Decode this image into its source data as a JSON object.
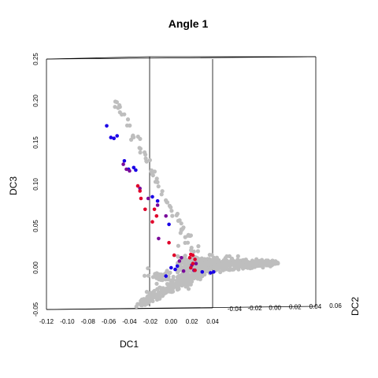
{
  "chart_data": {
    "type": "scatter",
    "title": "Angle 1",
    "xlabel": "DC1",
    "ylabel": "DC3",
    "zlabel": "DC2",
    "projection": "3d",
    "xlim": [
      -0.12,
      0.04
    ],
    "ylim": [
      -0.05,
      0.25
    ],
    "zlim": [
      -0.04,
      0.06
    ],
    "x_ticks": [
      "-0.12",
      "-0.10",
      "-0.08",
      "-0.06",
      "-0.04",
      "-0.02",
      "0.00",
      "0.02",
      "0.04"
    ],
    "y_ticks": [
      "-0.05",
      "0.00",
      "0.05",
      "0.10",
      "0.15",
      "0.20",
      "0.25"
    ],
    "z_ticks": [
      "-0.04",
      "-0.02",
      "0.00",
      "0.02",
      "0.04",
      "0.06"
    ],
    "colors": {
      "grey": "#bebebe",
      "blue": "#1a00e6",
      "purple": "#7a0a9a",
      "red": "#e0002a"
    },
    "series": [
      {
        "color": "blue",
        "points": [
          [
            -0.062,
            0.17
          ],
          [
            -0.058,
            0.156
          ],
          [
            -0.055,
            0.155
          ],
          [
            -0.052,
            0.158
          ],
          [
            -0.045,
            0.128
          ],
          [
            -0.041,
            0.118
          ],
          [
            -0.036,
            0.12
          ],
          [
            -0.034,
            0.117
          ],
          [
            -0.018,
            0.085
          ],
          [
            -0.013,
            0.08
          ],
          [
            -0.002,
            0.052
          ],
          [
            0.006,
            0.002
          ],
          [
            0.004,
            -0.002
          ],
          [
            -0.005,
            -0.01
          ],
          [
            0.0,
            0.0
          ],
          [
            0.03,
            -0.005
          ],
          [
            0.038,
            -0.006
          ],
          [
            0.041,
            -0.005
          ]
        ]
      },
      {
        "color": "purple",
        "points": [
          [
            -0.046,
            0.124
          ],
          [
            -0.043,
            0.118
          ],
          [
            -0.04,
            0.116
          ],
          [
            -0.03,
            0.095
          ],
          [
            -0.022,
            0.083
          ],
          [
            -0.013,
            0.075
          ],
          [
            -0.005,
            0.062
          ],
          [
            -0.012,
            0.035
          ],
          [
            0.008,
            0.008
          ],
          [
            0.012,
            -0.004
          ],
          [
            0.02,
            0.003
          ],
          [
            0.022,
            -0.003
          ],
          [
            0.024,
            0.005
          ],
          [
            0.01,
            0.012
          ]
        ]
      },
      {
        "color": "red",
        "points": [
          [
            -0.032,
            0.098
          ],
          [
            -0.03,
            0.092
          ],
          [
            -0.029,
            0.083
          ],
          [
            -0.025,
            0.07
          ],
          [
            -0.016,
            0.07
          ],
          [
            -0.014,
            0.062
          ],
          [
            -0.018,
            0.055
          ],
          [
            -0.002,
            0.03
          ],
          [
            0.003,
            0.015
          ],
          [
            0.018,
            0.012
          ],
          [
            0.019,
            0.016
          ],
          [
            0.021,
            0.015
          ],
          [
            0.023,
            0.01
          ],
          [
            0.021,
            0.005
          ],
          [
            0.019,
            0.0
          ],
          [
            0.023,
            -0.003
          ]
        ]
      }
    ]
  }
}
